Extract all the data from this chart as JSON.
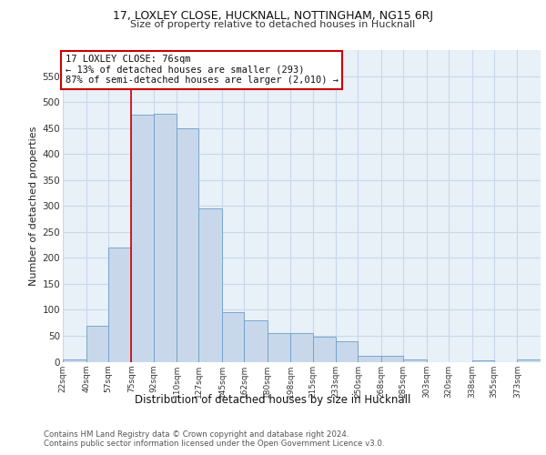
{
  "title1": "17, LOXLEY CLOSE, HUCKNALL, NOTTINGHAM, NG15 6RJ",
  "title2": "Size of property relative to detached houses in Hucknall",
  "xlabel": "Distribution of detached houses by size in Hucknall",
  "ylabel": "Number of detached properties",
  "footnote": "Contains HM Land Registry data © Crown copyright and database right 2024.\nContains public sector information licensed under the Open Government Licence v3.0.",
  "annotation_title": "17 LOXLEY CLOSE: 76sqm",
  "annotation_line1": "← 13% of detached houses are smaller (293)",
  "annotation_line2": "87% of semi-detached houses are larger (2,010) →",
  "property_line_x": 75,
  "bar_edges": [
    22,
    40,
    57,
    75,
    92,
    110,
    127,
    145,
    162,
    180,
    198,
    215,
    233,
    250,
    268,
    285,
    303,
    320,
    338,
    355,
    373
  ],
  "bar_heights": [
    5,
    70,
    220,
    475,
    478,
    450,
    295,
    95,
    80,
    55,
    55,
    48,
    40,
    12,
    12,
    4,
    0,
    0,
    3,
    0,
    5
  ],
  "bar_color": "#c8d8ea",
  "bar_edge_color": "#6b9ec8",
  "vline_color": "#cc0000",
  "box_edge_color": "#cc0000",
  "grid_color": "#c8d8ea",
  "bg_color": "#e8f0f8",
  "ylim": [
    0,
    600
  ],
  "yticks": [
    0,
    50,
    100,
    150,
    200,
    250,
    300,
    350,
    400,
    450,
    500,
    550
  ],
  "xtick_labels": [
    "22sqm",
    "40sqm",
    "57sqm",
    "75sqm",
    "92sqm",
    "110sqm",
    "127sqm",
    "145sqm",
    "162sqm",
    "180sqm",
    "198sqm",
    "215sqm",
    "233sqm",
    "250sqm",
    "268sqm",
    "285sqm",
    "303sqm",
    "320sqm",
    "338sqm",
    "355sqm",
    "373sqm"
  ]
}
